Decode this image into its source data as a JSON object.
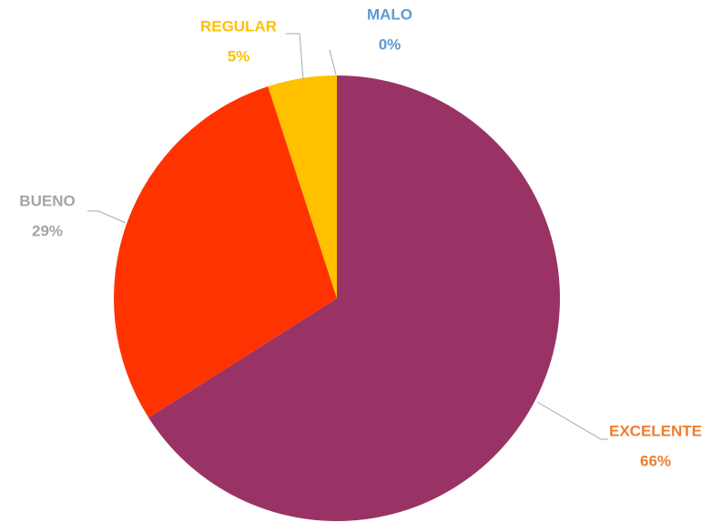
{
  "chart_data": {
    "type": "pie",
    "categories": [
      "EXCELENTE",
      "BUENO",
      "REGULAR",
      "MALO"
    ],
    "values": [
      66,
      29,
      5,
      0
    ],
    "value_labels": [
      "66%",
      "29%",
      "5%",
      "0%"
    ],
    "colors": [
      "#993366",
      "#ff3300",
      "#ffc000",
      "#4472c4"
    ],
    "label_colors": [
      "#ed7d31",
      "#a5a5a5",
      "#ffc000",
      "#5b9bd5"
    ]
  }
}
